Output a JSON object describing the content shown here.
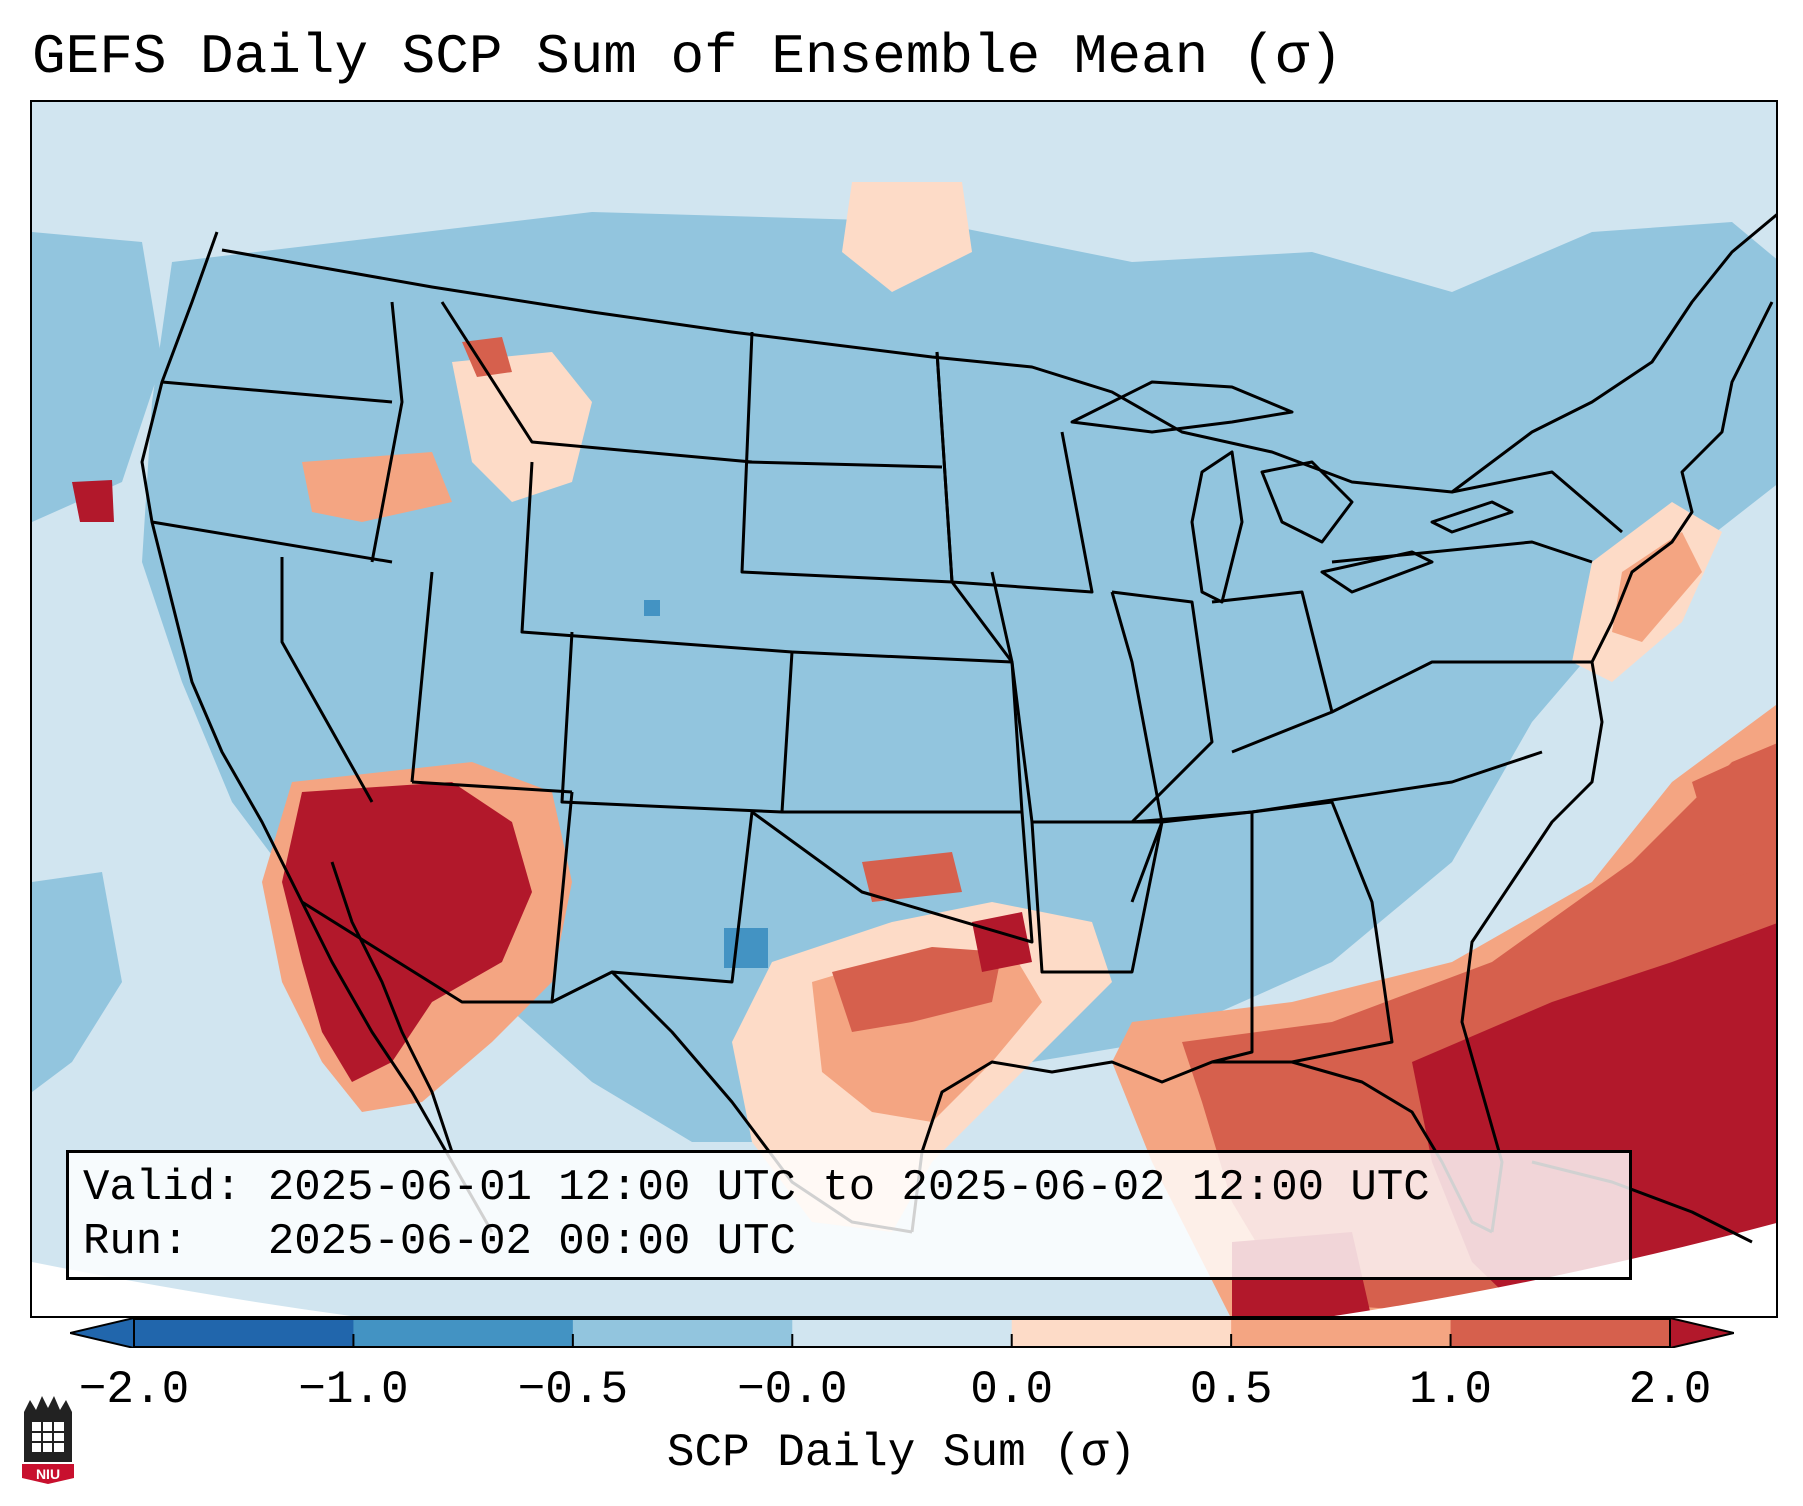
{
  "title": "GEFS Daily SCP Sum of Ensemble Mean (σ)",
  "info": {
    "valid_label": "Valid:",
    "valid_value": "2025-06-01 12:00 UTC to 2025-06-02 12:00 UTC",
    "run_label": "Run:",
    "run_value": "2025-06-02 00:00 UTC"
  },
  "colorbar": {
    "label": "SCP Daily Sum (σ)",
    "ticks": [
      "−2.0",
      "−1.0",
      "−0.5",
      "−0.0",
      "0.0",
      "0.5",
      "1.0",
      "2.0"
    ],
    "bin_colors": [
      "#2166ac",
      "#4393c3",
      "#92c5de",
      "#d1e5f0",
      "#fddbc7",
      "#f4a582",
      "#d6604d",
      "#b2182b"
    ],
    "under_color": "#2166ac",
    "over_color": "#b2182b"
  },
  "logo": {
    "text": "NIU"
  },
  "colors": {
    "slightly_negative": "#d1e5f0",
    "moderate_negative": "#92c5de",
    "strong_negative": "#4393c3",
    "weak_positive": "#fddbc7",
    "moderate_positive": "#f4a582",
    "strong_positive": "#d6604d",
    "extreme_positive": "#b2182b",
    "border": "#000000"
  }
}
